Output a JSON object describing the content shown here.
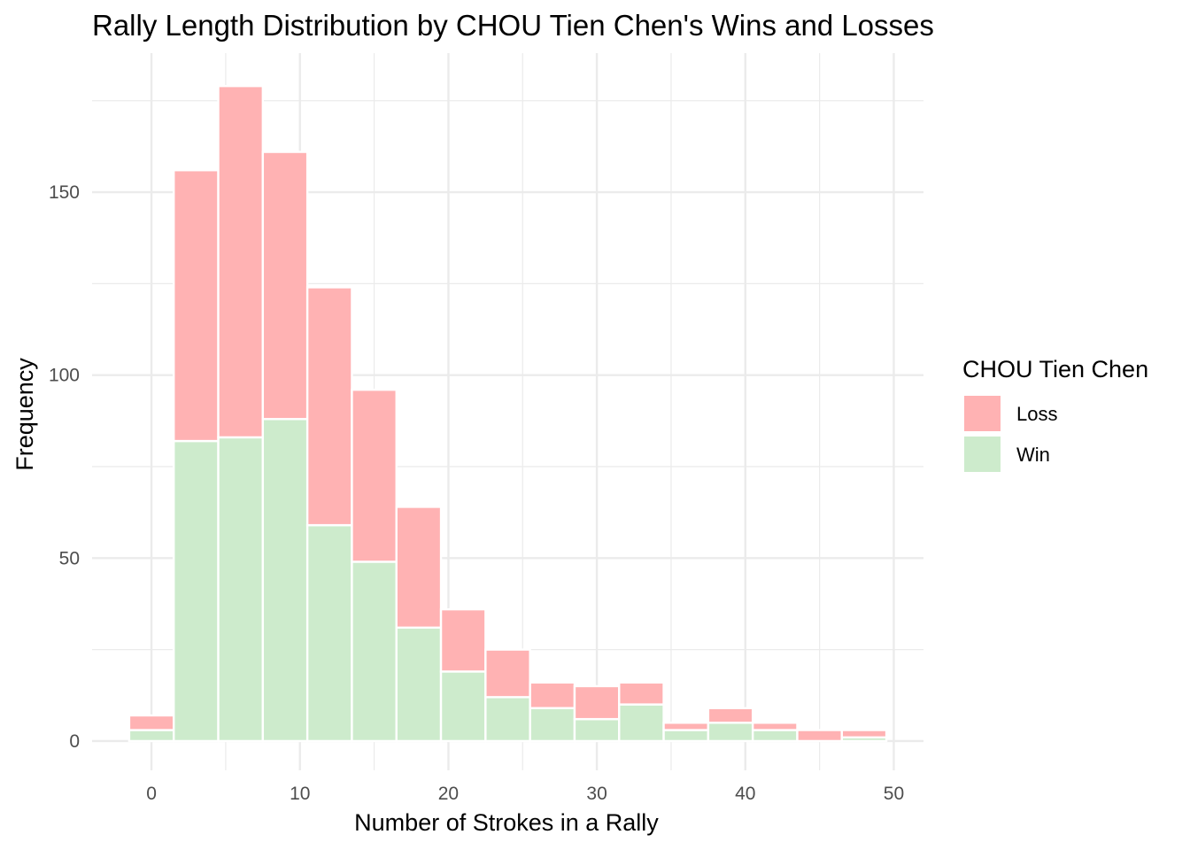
{
  "chart_data": {
    "type": "bar",
    "stacked": true,
    "title": "Rally Length Distribution by CHOU Tien Chen's Wins and Losses",
    "xlabel": "Number of Strokes in a Rally",
    "ylabel": "Frequency",
    "bin_width": 3,
    "bin_centers": [
      0,
      3,
      6,
      9,
      12,
      15,
      18,
      21,
      24,
      27,
      30,
      33,
      36,
      39,
      42,
      45,
      48
    ],
    "series": [
      {
        "name": "Win",
        "color": "#cdebcc",
        "values": [
          3,
          82,
          83,
          88,
          59,
          49,
          31,
          19,
          12,
          9,
          6,
          10,
          3,
          5,
          3,
          0,
          1
        ]
      },
      {
        "name": "Loss",
        "color": "#ffb2b3",
        "values": [
          4,
          74,
          96,
          73,
          65,
          47,
          33,
          17,
          13,
          7,
          9,
          6,
          2,
          4,
          2,
          3,
          2
        ]
      }
    ],
    "xlim": [
      -4,
      52
    ],
    "ylim": [
      -8,
      188
    ],
    "x_ticks": [
      "0",
      "10",
      "20",
      "30",
      "40",
      "50"
    ],
    "y_ticks": [
      "0",
      "50",
      "100",
      "150"
    ],
    "legend": {
      "title": "CHOU Tien Chen",
      "position": "right",
      "entries": [
        "Loss",
        "Win"
      ]
    },
    "grid": true
  }
}
